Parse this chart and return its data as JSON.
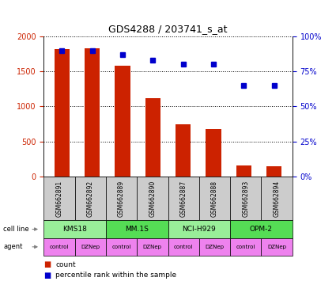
{
  "title": "GDS4288 / 203741_s_at",
  "samples": [
    "GSM662891",
    "GSM662892",
    "GSM662889",
    "GSM662890",
    "GSM662887",
    "GSM662888",
    "GSM662893",
    "GSM662894"
  ],
  "counts": [
    1820,
    1830,
    1580,
    1120,
    740,
    680,
    155,
    140
  ],
  "percentile_ranks": [
    90,
    90,
    87,
    83,
    80,
    80,
    65,
    65
  ],
  "cell_lines": [
    "KMS18",
    "MM.1S",
    "NCI-H929",
    "OPM-2"
  ],
  "cell_line_spans": [
    [
      0,
      2
    ],
    [
      2,
      4
    ],
    [
      4,
      6
    ],
    [
      6,
      8
    ]
  ],
  "cell_line_colors_alt": [
    "#99ee99",
    "#55dd55"
  ],
  "agents": [
    "control",
    "DZNep",
    "control",
    "DZNep",
    "control",
    "DZNep",
    "control",
    "DZNep"
  ],
  "agent_color": "#ee82ee",
  "sample_bg_color": "#cccccc",
  "bar_color": "#cc2200",
  "dot_color": "#0000cc",
  "ylim_left": [
    0,
    2000
  ],
  "ylim_right": [
    0,
    100
  ],
  "yticks_left": [
    0,
    500,
    1000,
    1500,
    2000
  ],
  "yticks_right": [
    0,
    25,
    50,
    75,
    100
  ],
  "yticklabels_right": [
    "0%",
    "25%",
    "50%",
    "75%",
    "100%"
  ],
  "background_color": "#ffffff",
  "bar_width": 0.5
}
